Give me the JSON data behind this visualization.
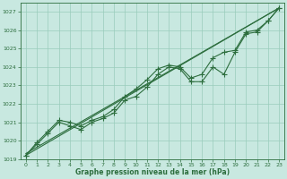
{
  "background_color": "#c8e8e0",
  "grid_color": "#99ccbb",
  "line_color": "#2d6e3e",
  "marker_color": "#2d6e3e",
  "xlabel": "Graphe pression niveau de la mer (hPa)",
  "xlim": [
    -0.5,
    23.5
  ],
  "ylim": [
    1019.0,
    1027.5
  ],
  "yticks": [
    1019,
    1020,
    1021,
    1022,
    1023,
    1024,
    1025,
    1026,
    1027
  ],
  "xticks": [
    0,
    1,
    2,
    3,
    4,
    5,
    6,
    7,
    8,
    9,
    10,
    11,
    12,
    13,
    14,
    15,
    16,
    17,
    18,
    19,
    20,
    21,
    22,
    23
  ],
  "series": [
    {
      "x": [
        0,
        23
      ],
      "y": [
        1019.2,
        1027.2
      ],
      "has_markers": false
    },
    {
      "x": [
        0,
        23
      ],
      "y": [
        1019.3,
        1027.2
      ],
      "has_markers": false
    },
    {
      "x": [
        0,
        1,
        2,
        3,
        4,
        5,
        6,
        7,
        8,
        9,
        10,
        11,
        12,
        13,
        14,
        15,
        16,
        17,
        18,
        19,
        20,
        21,
        22,
        23
      ],
      "y": [
        1019.2,
        1019.8,
        1020.4,
        1021.0,
        1020.8,
        1020.6,
        1021.0,
        1021.2,
        1021.5,
        1022.2,
        1022.4,
        1022.9,
        1023.6,
        1024.0,
        1023.9,
        1023.2,
        1023.2,
        1024.0,
        1023.6,
        1024.8,
        1025.8,
        1025.9,
        1026.5,
        1027.2
      ],
      "has_markers": true
    },
    {
      "x": [
        0,
        1,
        2,
        3,
        4,
        5,
        6,
        7,
        8,
        9,
        10,
        11,
        12,
        13,
        14,
        15,
        16,
        17,
        18,
        19,
        20,
        21,
        22,
        23
      ],
      "y": [
        1019.2,
        1019.9,
        1020.5,
        1021.1,
        1021.0,
        1020.8,
        1021.1,
        1021.3,
        1021.7,
        1022.4,
        1022.8,
        1023.3,
        1023.9,
        1024.1,
        1024.0,
        1023.4,
        1023.6,
        1024.5,
        1024.8,
        1024.9,
        1025.9,
        1026.0,
        1026.5,
        1027.2
      ],
      "has_markers": true
    }
  ]
}
